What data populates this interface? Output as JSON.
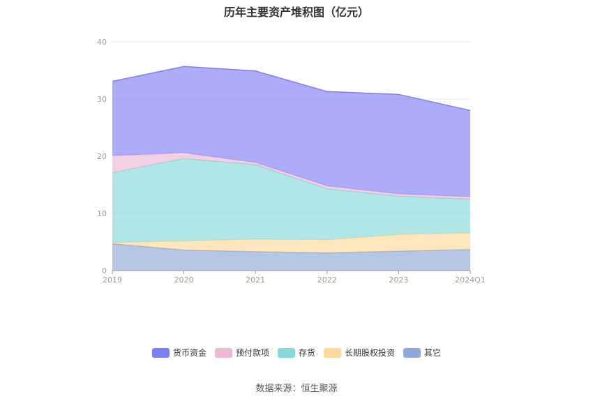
{
  "chart_data": {
    "type": "area",
    "stacked": true,
    "title": "历年主要资产堆积图（亿元）",
    "categories": [
      "2019",
      "2020",
      "2021",
      "2022",
      "2023",
      "2024Q1"
    ],
    "ylim": [
      0,
      40
    ],
    "yticks": [
      "0",
      "10",
      "20",
      "30",
      "40"
    ],
    "grid": true,
    "legend_position": "bottom",
    "series": [
      {
        "name": "其它",
        "color": "#8fa9d9",
        "values": [
          4.7,
          3.6,
          3.3,
          3.1,
          3.4,
          3.7
        ]
      },
      {
        "name": "长期股权投资",
        "color": "#fcd99a",
        "values": [
          0.2,
          1.6,
          2.2,
          2.3,
          2.9,
          2.9
        ]
      },
      {
        "name": "存货",
        "color": "#86d8d8",
        "values": [
          12.2,
          14.4,
          13.0,
          8.9,
          6.7,
          5.9
        ]
      },
      {
        "name": "预付款项",
        "color": "#ecb8d6",
        "values": [
          3.0,
          1.0,
          0.4,
          0.5,
          0.4,
          0.4
        ]
      },
      {
        "name": "货币资金",
        "color": "#7f7ff5",
        "values": [
          13.0,
          15.1,
          16.0,
          16.5,
          17.4,
          15.1
        ]
      }
    ],
    "legend_order": [
      "货币资金",
      "预付款项",
      "存货",
      "长期股权投资",
      "其它"
    ]
  },
  "source": "数据来源：恒生聚源"
}
